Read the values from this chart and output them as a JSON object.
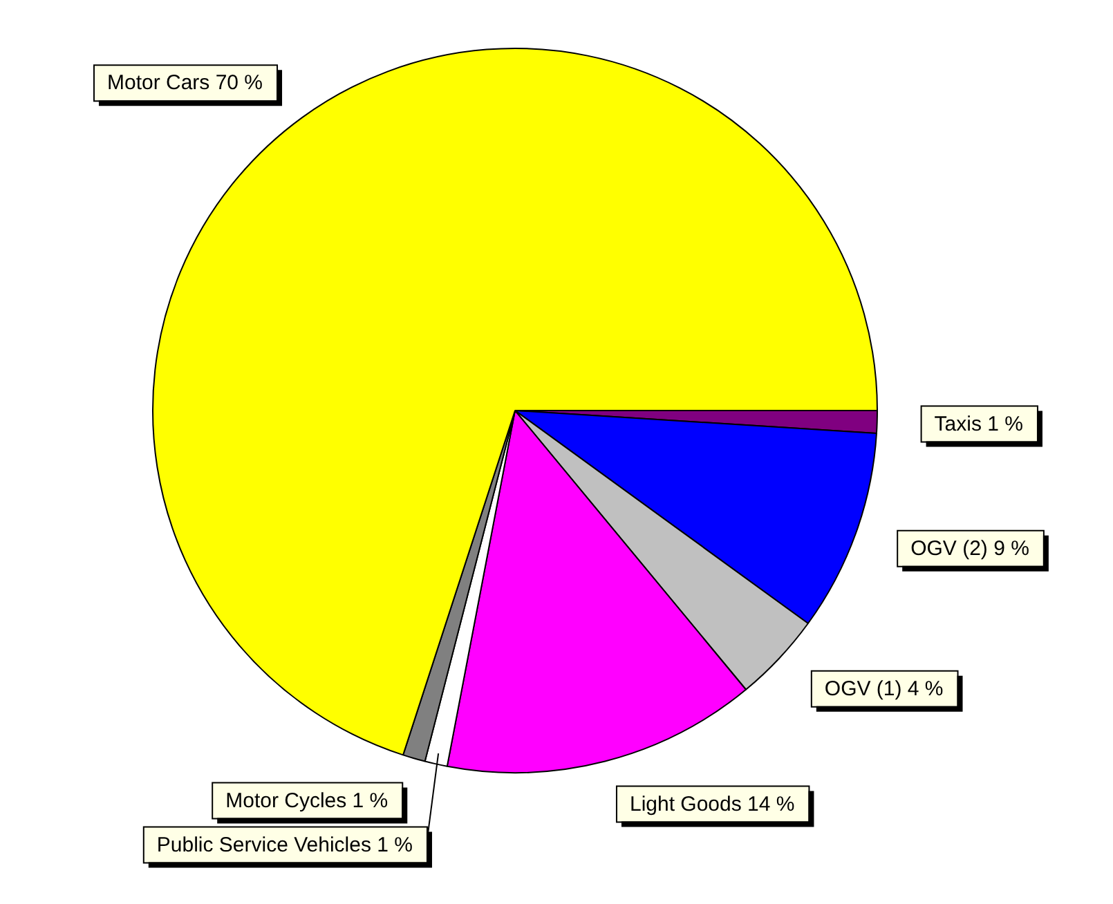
{
  "chart_data": {
    "type": "pie",
    "categories": [
      "Taxis",
      "OGV (2)",
      "OGV (1)",
      "Light Goods",
      "Public Service Vehicles",
      "Motor Cycles",
      "Motor Cars"
    ],
    "values": [
      1,
      9,
      4,
      14,
      1,
      1,
      70
    ],
    "value_labels": [
      "1 %",
      "9 %",
      "4 %",
      "14 %",
      "1 %",
      "1 %",
      "70 %"
    ],
    "colors": [
      "#800080",
      "#0000ff",
      "#c0c0c0",
      "#ff00ff",
      "#ffffff",
      "#808080",
      "#ffff00"
    ],
    "legend": false
  }
}
